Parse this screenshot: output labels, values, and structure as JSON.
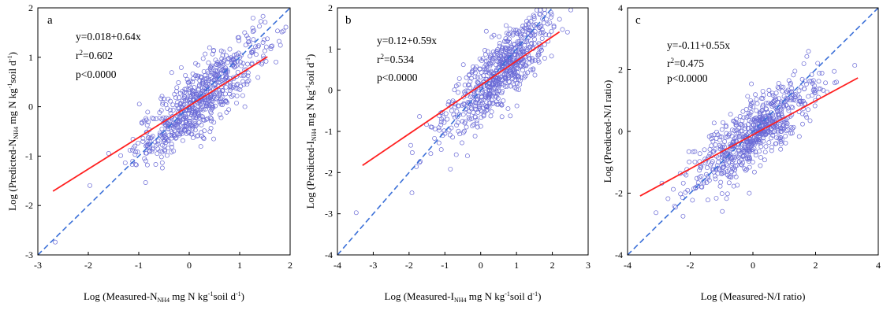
{
  "figure": {
    "panels": [
      {
        "letter": "a",
        "stats": [
          "y=0.018+0.64x",
          "r2=0.602",
          "p<0.0000"
        ]
      },
      {
        "letter": "b",
        "stats": [
          "y=0.12+0.59x",
          "r2=0.534",
          "p<0.0000"
        ]
      },
      {
        "letter": "c",
        "stats": [
          "y=-0.11+0.55x",
          "r2=0.475",
          "p<0.0000"
        ]
      }
    ]
  },
  "chart_data": [
    {
      "type": "scatter",
      "panel": "a",
      "xlabel": "Log (Measured-N_NH4 mg N kg^-1 soil d^-1)",
      "ylabel": "Log (Predicted-N_NH4 mg N kg^-1 soil d^-1)",
      "xlim": [
        -3,
        2
      ],
      "ylim": [
        -3,
        2
      ],
      "xticks": [
        -3,
        -2,
        -1,
        0,
        1,
        2
      ],
      "yticks": [
        -3,
        -2,
        -1,
        0,
        1,
        2
      ],
      "n_points": 700,
      "center": [
        0.2,
        0.15
      ],
      "spread": 0.62,
      "fit": {
        "intercept": 0.018,
        "slope": 0.64,
        "x_range": [
          -2.7,
          1.55
        ],
        "color": "#ff2020"
      },
      "one_to_one": {
        "color": "#3a6fd8",
        "style": "dashed"
      },
      "marker_color": "#6a6ad6",
      "stats": {
        "equation": "y=0.018+0.64x",
        "r2": "0.602",
        "p": "p<0.0000"
      }
    },
    {
      "type": "scatter",
      "panel": "b",
      "xlabel": "Log (Measured-I_NH4 mg N kg^-1 soil d^-1)",
      "ylabel": "Log (Predicted-I_NH4 mg N kg^-1 soil d^-1)",
      "xlim": [
        -4,
        3
      ],
      "ylim": [
        -4,
        2
      ],
      "xticks": [
        -4,
        -3,
        -2,
        -1,
        0,
        1,
        2,
        3
      ],
      "yticks": [
        -4,
        -3,
        -2,
        -1,
        0,
        1,
        2
      ],
      "n_points": 700,
      "center": [
        0.5,
        0.4
      ],
      "spread": 0.75,
      "fit": {
        "intercept": 0.12,
        "slope": 0.59,
        "x_range": [
          -3.3,
          2.2
        ],
        "color": "#ff2020"
      },
      "one_to_one": {
        "color": "#3a6fd8",
        "style": "dashed"
      },
      "marker_color": "#6a6ad6",
      "stats": {
        "equation": "y=0.12+0.59x",
        "r2": "0.534",
        "p": "p<0.0000"
      }
    },
    {
      "type": "scatter",
      "panel": "c",
      "xlabel": "Log (Measured-N/I ratio)",
      "ylabel": "Log (Predicted-N/I ratio)",
      "xlim": [
        -4,
        4
      ],
      "ylim": [
        -4,
        4
      ],
      "xticks": [
        -4,
        -2,
        0,
        2,
        4
      ],
      "yticks": [
        -4,
        -2,
        0,
        2,
        4
      ],
      "n_points": 700,
      "center": [
        0.0,
        0.0
      ],
      "spread": 0.95,
      "fit": {
        "intercept": -0.11,
        "slope": 0.55,
        "x_range": [
          -3.6,
          3.35
        ],
        "color": "#ff2020"
      },
      "one_to_one": {
        "color": "#3a6fd8",
        "style": "dashed"
      },
      "marker_color": "#6a6ad6",
      "stats": {
        "equation": "y=-0.11+0.55x",
        "r2": "0.475",
        "p": "p<0.0000"
      }
    }
  ]
}
